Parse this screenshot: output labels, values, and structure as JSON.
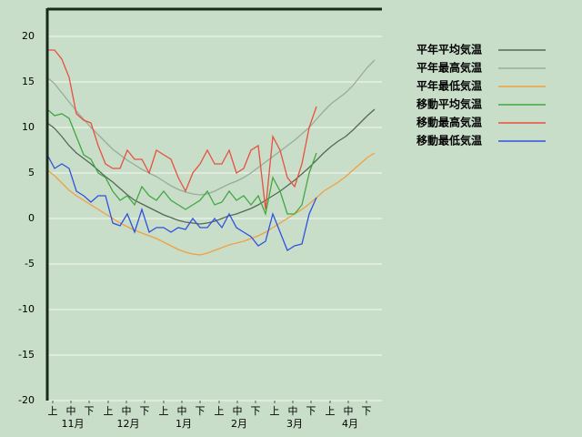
{
  "chart_data": {
    "type": "line",
    "x": [
      0,
      4,
      8,
      12,
      16,
      20,
      24,
      28,
      32,
      36,
      40,
      44,
      48,
      52,
      56,
      60,
      64,
      68,
      72,
      76,
      80,
      84,
      88,
      92,
      96,
      100,
      104,
      108,
      112,
      116,
      120,
      124,
      128,
      132,
      136,
      140,
      144,
      148,
      152,
      156,
      160,
      164,
      168,
      172,
      176,
      180
    ],
    "xlim": [
      0,
      184
    ],
    "xticks": [
      {
        "value": 3,
        "label": "上"
      },
      {
        "value": 13,
        "label": "中"
      },
      {
        "value": 23,
        "label": "下"
      },
      {
        "value": 33.5,
        "label": "上"
      },
      {
        "value": 43.5,
        "label": "中"
      },
      {
        "value": 53.5,
        "label": "下"
      },
      {
        "value": 64,
        "label": "上"
      },
      {
        "value": 74,
        "label": "中"
      },
      {
        "value": 84,
        "label": "下"
      },
      {
        "value": 94.5,
        "label": "上"
      },
      {
        "value": 104.5,
        "label": "中"
      },
      {
        "value": 114.5,
        "label": "下"
      },
      {
        "value": 125,
        "label": "上"
      },
      {
        "value": 135,
        "label": "中"
      },
      {
        "value": 145,
        "label": "下"
      },
      {
        "value": 155.5,
        "label": "上"
      },
      {
        "value": 165.5,
        "label": "中"
      },
      {
        "value": 175.5,
        "label": "下"
      }
    ],
    "month_ticks": [
      {
        "value": 14,
        "label": "11月"
      },
      {
        "value": 44.5,
        "label": "12月"
      },
      {
        "value": 75,
        "label": "1月"
      },
      {
        "value": 105.5,
        "label": "2月"
      },
      {
        "value": 136,
        "label": "3月"
      },
      {
        "value": 166.5,
        "label": "4月"
      }
    ],
    "ylim": [
      -20,
      23
    ],
    "yticks": [
      -20,
      -15,
      -10,
      -5,
      0,
      5,
      10,
      15,
      20
    ],
    "grid": true,
    "series": [
      {
        "name": "平年平均気温",
        "color": "#566856",
        "values": [
          10.5,
          9.9,
          9.0,
          8.0,
          7.2,
          6.6,
          6.0,
          5.3,
          4.6,
          4.0,
          3.3,
          2.6,
          2.0,
          1.6,
          1.2,
          0.8,
          0.4,
          0.1,
          -0.2,
          -0.4,
          -0.5,
          -0.6,
          -0.5,
          -0.3,
          0,
          0.3,
          0.5,
          0.8,
          1.1,
          1.5,
          2.0,
          2.5,
          3.0,
          3.6,
          4.2,
          4.9,
          5.6,
          6.4,
          7.2,
          7.9,
          8.5,
          9.0,
          9.7,
          10.5,
          11.3,
          12.0
        ]
      },
      {
        "name": "平年最高気温",
        "color": "#9aab9a",
        "values": [
          15.5,
          14.8,
          13.8,
          12.8,
          11.8,
          10.9,
          10.0,
          9.2,
          8.4,
          7.6,
          7.0,
          6.4,
          5.9,
          5.4,
          5.0,
          4.6,
          4.1,
          3.6,
          3.2,
          2.9,
          2.7,
          2.6,
          2.7,
          3.0,
          3.4,
          3.8,
          4.1,
          4.5,
          5.0,
          5.6,
          6.2,
          6.8,
          7.4,
          8.0,
          8.6,
          9.3,
          10.0,
          10.9,
          11.8,
          12.6,
          13.2,
          13.8,
          14.6,
          15.6,
          16.6,
          17.4
        ]
      },
      {
        "name": "平年最低気温",
        "color": "#f0a040",
        "values": [
          5.3,
          4.7,
          3.9,
          3.1,
          2.5,
          2.0,
          1.5,
          1.0,
          0.5,
          0,
          -0.5,
          -0.9,
          -1.3,
          -1.6,
          -1.9,
          -2.2,
          -2.6,
          -3.0,
          -3.4,
          -3.7,
          -3.9,
          -4.0,
          -3.8,
          -3.5,
          -3.2,
          -2.9,
          -2.7,
          -2.5,
          -2.2,
          -1.9,
          -1.5,
          -1.0,
          -0.5,
          0,
          0.5,
          1.0,
          1.6,
          2.3,
          3.0,
          3.5,
          4.0,
          4.6,
          5.3,
          6.0,
          6.7,
          7.2
        ]
      },
      {
        "name": "移動平均気温",
        "color": "#40a840",
        "values": [
          12.0,
          11.3,
          11.5,
          11.0,
          9.0,
          7.0,
          6.5,
          5.0,
          4.5,
          3.0,
          2.0,
          2.5,
          1.5,
          3.5,
          2.5,
          2.0,
          3.0,
          2.0,
          1.5,
          1.0,
          1.5,
          2.0,
          3.0,
          1.5,
          1.8,
          3.0,
          2.0,
          2.5,
          1.5,
          2.5,
          0.5,
          4.5,
          3.0,
          0.5,
          0.5,
          1.5,
          5.0,
          7.2,
          null,
          null,
          null,
          null,
          null,
          null,
          null,
          null
        ]
      },
      {
        "name": "移動最高気温",
        "color": "#e85040",
        "values": [
          18.5,
          18.5,
          17.5,
          15.5,
          11.5,
          10.8,
          10.5,
          8.0,
          6.0,
          5.5,
          5.5,
          7.5,
          6.5,
          6.5,
          5.0,
          7.5,
          7.0,
          6.5,
          4.5,
          3.0,
          5.0,
          6.0,
          7.5,
          6.0,
          6.0,
          7.5,
          5.0,
          5.5,
          7.5,
          8.0,
          1.0,
          9.0,
          7.5,
          4.5,
          3.5,
          6.0,
          10.0,
          12.3,
          null,
          null,
          null,
          null,
          null,
          null,
          null,
          null
        ]
      },
      {
        "name": "移動最低気温",
        "color": "#3050e0",
        "values": [
          7.0,
          5.5,
          6.0,
          5.5,
          3.0,
          2.5,
          1.8,
          2.5,
          2.5,
          -0.5,
          -0.8,
          0.5,
          -1.5,
          1.0,
          -1.5,
          -1.0,
          -1.0,
          -1.5,
          -1.0,
          -1.2,
          0,
          -1.0,
          -1.0,
          0,
          -1.0,
          0.5,
          -1.0,
          -1.5,
          -2.0,
          -3.0,
          -2.5,
          0.5,
          -1.5,
          -3.5,
          -3.0,
          -2.8,
          0.5,
          2.3,
          null,
          null,
          null,
          null,
          null,
          null,
          null,
          null
        ]
      }
    ]
  }
}
